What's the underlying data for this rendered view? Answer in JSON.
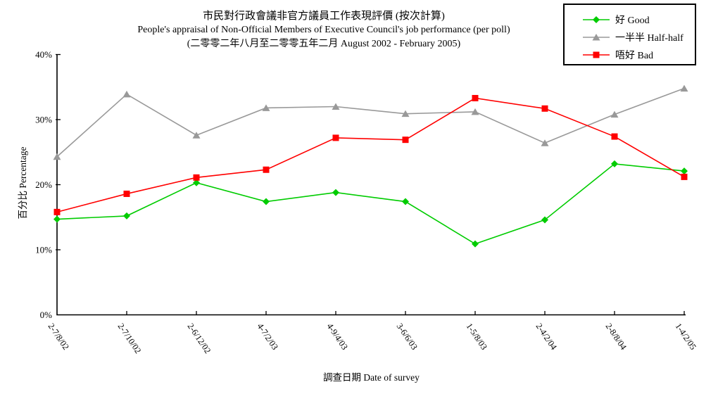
{
  "title": {
    "line1": "市民對行政會議非官方議員工作表現評價 (按次計算)",
    "line2": "People's appraisal of Non-Official Members of Executive Council's job performance (per poll)",
    "line3": "(二零零二年八月至二零零五年二月 August 2002 - February 2005)"
  },
  "chart_data": {
    "type": "line",
    "title_lines": [
      "市民對行政會議非官方議員工作表現評價 (按次計算)",
      "People's appraisal of Non-Official Members of Executive Council's job performance (per poll)",
      "(二零零二年八月至二零零五年二月 August 2002 - February 2005)"
    ],
    "x": [
      "2-7/8/02",
      "2-7/10/02",
      "2-6/12/02",
      "4-7/2/03",
      "4-9/4/03",
      "3-6/6/03",
      "1-5/8/03",
      "2-4/2/04",
      "2-8/8/04",
      "1-4/2/05"
    ],
    "series": [
      {
        "key": "good",
        "name": "好 Good",
        "marker": "diamond",
        "color": "#00CC00",
        "values": [
          14.7,
          15.2,
          20.3,
          17.4,
          18.8,
          17.4,
          10.9,
          14.6,
          23.2,
          22.1
        ]
      },
      {
        "key": "half-half",
        "name": "一半半 Half-half",
        "marker": "triangle",
        "color": "#999999",
        "values": [
          24.3,
          33.9,
          27.6,
          31.8,
          32.0,
          30.9,
          31.2,
          26.4,
          30.8,
          34.8
        ]
      },
      {
        "key": "bad",
        "name": "唔好 Bad",
        "marker": "square",
        "color": "#FF0000",
        "values": [
          15.8,
          18.6,
          21.1,
          22.3,
          27.2,
          26.9,
          33.3,
          31.7,
          27.4,
          21.2
        ]
      }
    ],
    "xlabel": "調查日期 Date of survey",
    "ylabel": "百分比 Percentage",
    "ylim": [
      0,
      40
    ],
    "ytick_labels": [
      "0%",
      "10%",
      "20%",
      "30%",
      "40%"
    ],
    "legend_position": "top-right",
    "grid": false,
    "axis_color": "#000000"
  }
}
